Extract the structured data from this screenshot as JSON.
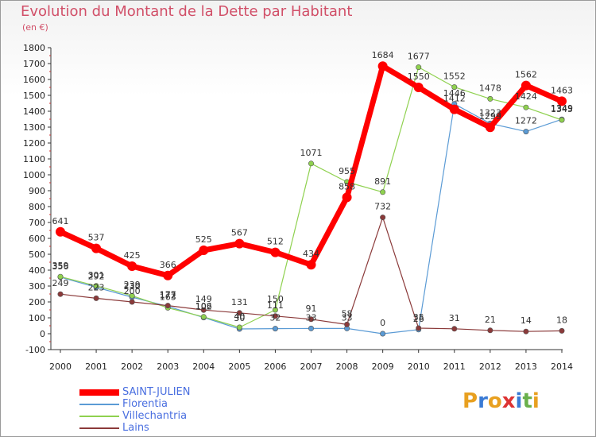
{
  "title": "Evolution du Montant de la Dette par Habitant",
  "subtitle": "(en €)",
  "logo_text": "Proxiti",
  "chart_data": {
    "type": "line",
    "title": "Evolution du Montant de la Dette par Habitant",
    "ylabel": "(en €)",
    "xlabel": "",
    "ylim": [
      -100,
      1800
    ],
    "y_ticks": [
      -100,
      0,
      100,
      200,
      300,
      400,
      500,
      600,
      700,
      800,
      900,
      1000,
      1100,
      1200,
      1300,
      1400,
      1500,
      1600,
      1700,
      1800
    ],
    "grid": false,
    "legend": "bottom-left",
    "categories": [
      "2000",
      "2001",
      "2002",
      "2003",
      "2004",
      "2005",
      "2006",
      "2007",
      "2008",
      "2009",
      "2010",
      "2011",
      "2012",
      "2013",
      "2014"
    ],
    "series": [
      {
        "name": "SAINT-JULIEN",
        "color": "#ff0000",
        "values": [
          641,
          537,
          425,
          366,
          525,
          567,
          512,
          434,
          858,
          1684,
          1550,
          1412,
          1299,
          1562,
          1463
        ]
      },
      {
        "name": "Florentia",
        "color": "#5b9bd5",
        "values": [
          356,
          292,
          230,
          172,
          102,
          30,
          32,
          33,
          33,
          0,
          26,
          1446,
          1323,
          1272,
          1349
        ]
      },
      {
        "name": "Villechantria",
        "color": "#8fd14f",
        "values": [
          359,
          301,
          239,
          163,
          106,
          40,
          150,
          1071,
          955,
          891,
          1677,
          1552,
          1478,
          1424,
          1345
        ]
      },
      {
        "name": "Lains",
        "color": "#8b3a3a",
        "values": [
          249,
          223,
          200,
          177,
          149,
          131,
          111,
          91,
          58,
          732,
          35,
          31,
          21,
          14,
          18
        ]
      }
    ]
  }
}
